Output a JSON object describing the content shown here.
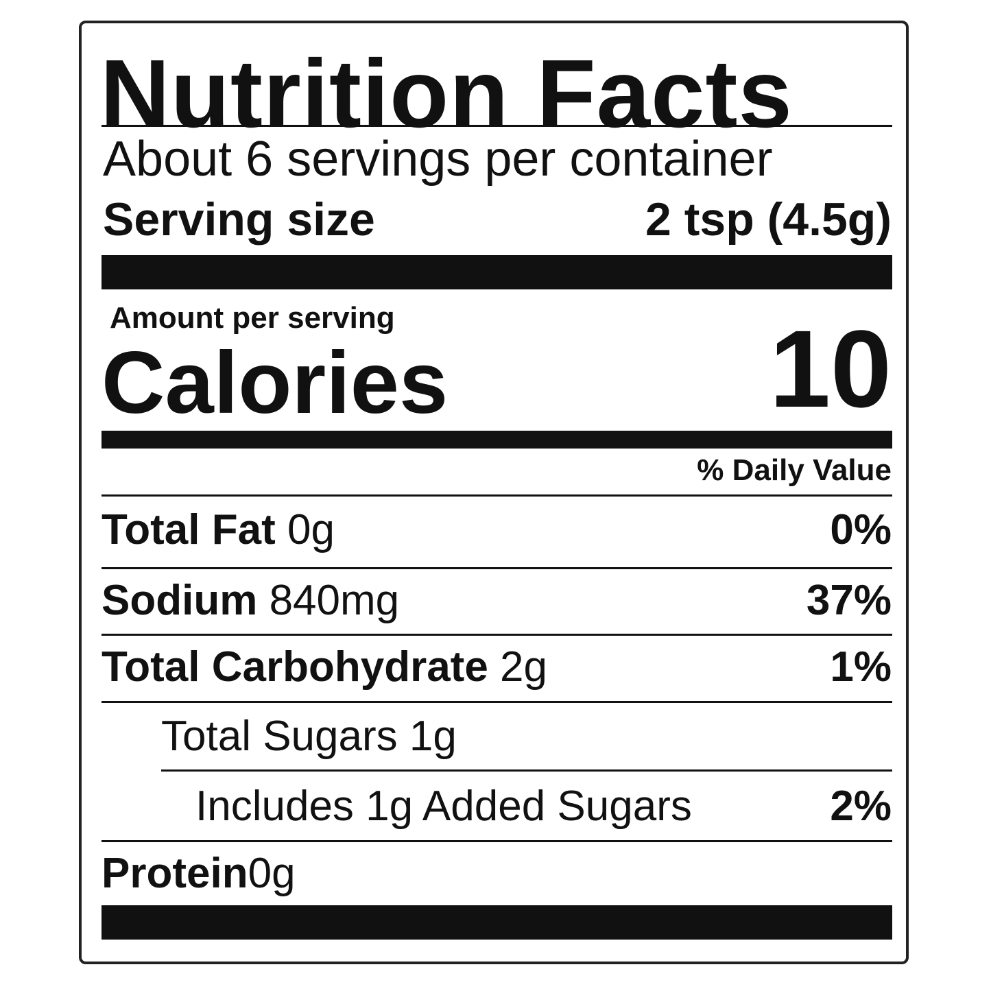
{
  "label": {
    "title": "Nutrition Facts",
    "servings_per_container": "About 6 servings per container",
    "serving_size_label": "Serving size",
    "serving_size_value": "2 tsp (4.5g)",
    "amount_per_serving": "Amount per serving",
    "calories_label": "Calories",
    "calories_value": "10",
    "daily_value_header": "% Daily Value",
    "nutrients": [
      {
        "name": "Total Fat",
        "amount": "0g",
        "dv": "0%"
      },
      {
        "name": "Sodium",
        "amount": "840mg",
        "dv": "37%"
      },
      {
        "name": "Total Carbohydrate",
        "amount": "2g",
        "dv": "1%"
      },
      {
        "name": "",
        "amount": "Total Sugars 1g",
        "dv": ""
      },
      {
        "name": "",
        "amount": "Includes 1g Added Sugars",
        "dv": "2%"
      },
      {
        "name": "Protein",
        "amount": "0g",
        "dv": ""
      }
    ]
  }
}
